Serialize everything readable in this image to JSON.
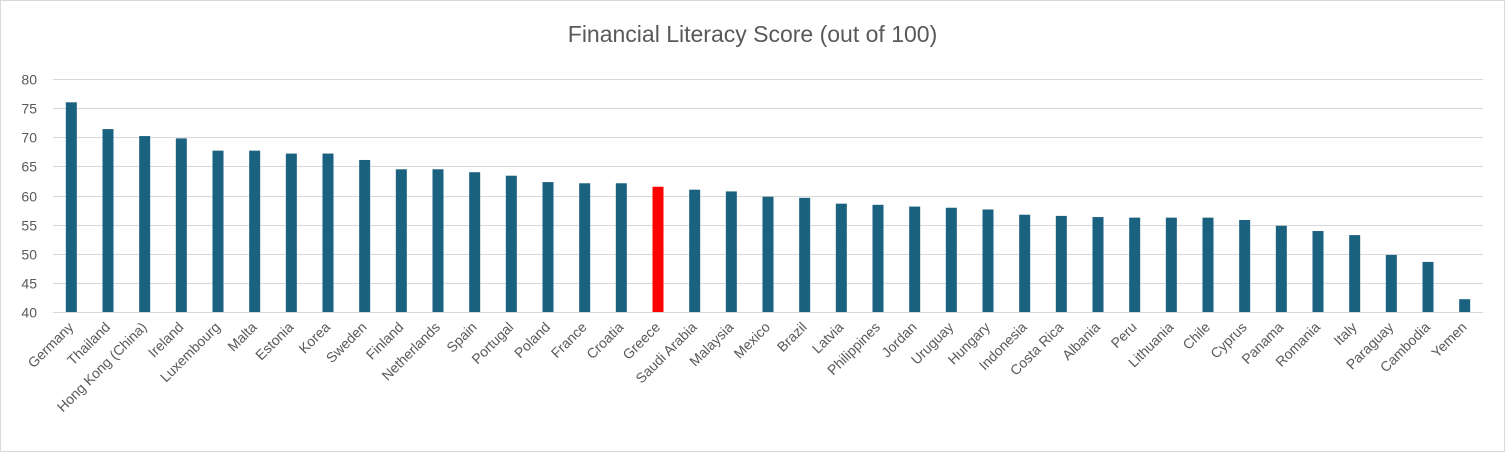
{
  "chart_data": {
    "type": "bar",
    "title": "Financial Literacy Score (out of 100)",
    "xlabel": "",
    "ylabel": "",
    "ylim": [
      40,
      80
    ],
    "yticks": [
      40,
      45,
      50,
      55,
      60,
      65,
      70,
      75,
      80
    ],
    "grid": true,
    "legend": "none",
    "colors": {
      "default": "#1b6180",
      "highlight": "#ff0000",
      "grid": "#d9d9d9",
      "text": "#595959"
    },
    "highlight_category": "Greece",
    "categories": [
      "Germany",
      "Thailand",
      "Hong Kong (China)",
      "Ireland",
      "Luxembourg",
      "Malta",
      "Estonia",
      "Korea",
      "Sweden",
      "Finland",
      "Netherlands",
      "Spain",
      "Portugal",
      "Poland",
      "France",
      "Croatia",
      "Greece",
      "Saudi Arabia",
      "Malaysia",
      "Mexico",
      "Brazil",
      "Latvia",
      "Philippines",
      "Jordan",
      "Uruguay",
      "Hungary",
      "Indonesia",
      "Costa Rica",
      "Albania",
      "Peru",
      "Lithuania",
      "Chile",
      "Cyprus",
      "Panama",
      "Romania",
      "Italy",
      "Paraguay",
      "Cambodia",
      "Yemen"
    ],
    "values": [
      76.0,
      71.4,
      70.2,
      69.8,
      67.7,
      67.7,
      67.2,
      67.2,
      66.1,
      64.5,
      64.5,
      64.0,
      63.4,
      62.3,
      62.1,
      62.1,
      61.5,
      61.0,
      60.7,
      59.8,
      59.6,
      58.6,
      58.4,
      58.1,
      57.9,
      57.6,
      56.7,
      56.5,
      56.3,
      56.2,
      56.2,
      56.2,
      55.8,
      54.8,
      53.9,
      53.2,
      49.8,
      48.6,
      42.2
    ]
  }
}
